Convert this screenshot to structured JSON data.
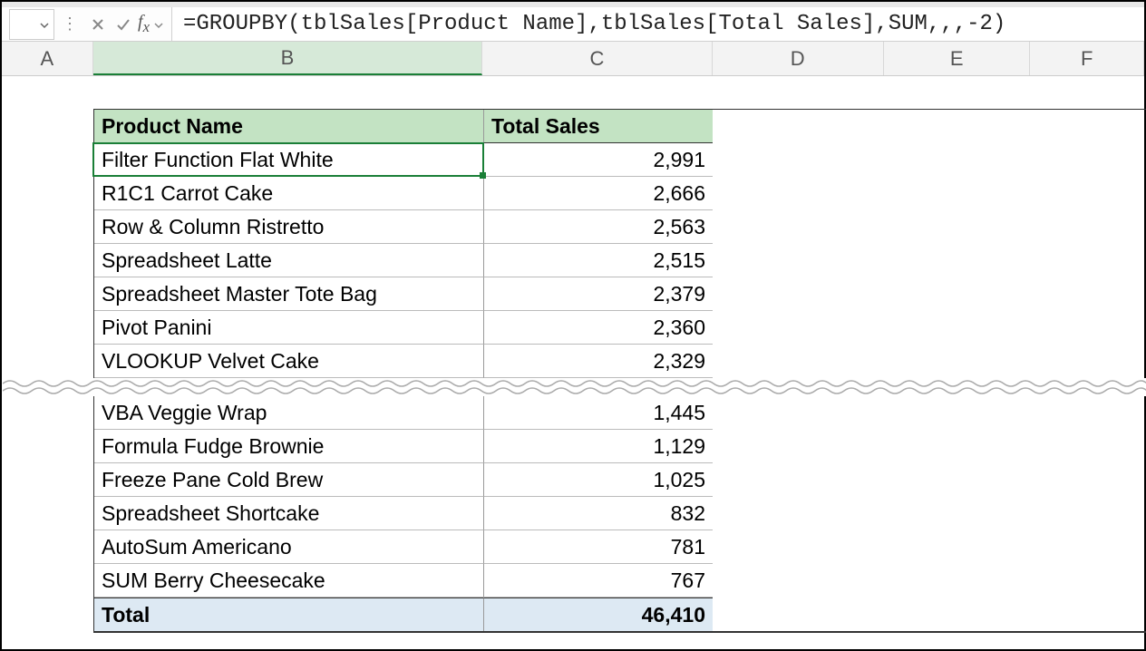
{
  "formula_bar": {
    "formula": "=GROUPBY(tblSales[Product Name],tblSales[Total Sales],SUM,,,-2)"
  },
  "columns": {
    "A": "A",
    "B": "B",
    "C": "C",
    "D": "D",
    "E": "E",
    "F": "F"
  },
  "table": {
    "header_bg": "#c3e3c3",
    "total_bg": "#dde9f3",
    "headers": {
      "product": "Product Name",
      "sales": "Total Sales"
    },
    "rows_top": [
      {
        "product": "Filter Function Flat White",
        "sales": "2,991"
      },
      {
        "product": "R1C1 Carrot Cake",
        "sales": "2,666"
      },
      {
        "product": "Row & Column Ristretto",
        "sales": "2,563"
      },
      {
        "product": "Spreadsheet Latte",
        "sales": "2,515"
      },
      {
        "product": "Spreadsheet Master Tote Bag",
        "sales": "2,379"
      },
      {
        "product": "Pivot Panini",
        "sales": "2,360"
      },
      {
        "product": "VLOOKUP Velvet Cake",
        "sales": "2,329"
      }
    ],
    "rows_bottom": [
      {
        "product": "VBA Veggie Wrap",
        "sales": "1,445"
      },
      {
        "product": "Formula Fudge Brownie",
        "sales": "1,129"
      },
      {
        "product": "Freeze Pane Cold Brew",
        "sales": "1,025"
      },
      {
        "product": "Spreadsheet Shortcake",
        "sales": "832"
      },
      {
        "product": "AutoSum Americano",
        "sales": "781"
      },
      {
        "product": "SUM Berry Cheesecake",
        "sales": "767"
      }
    ],
    "total": {
      "label": "Total",
      "value": "46,410"
    }
  }
}
